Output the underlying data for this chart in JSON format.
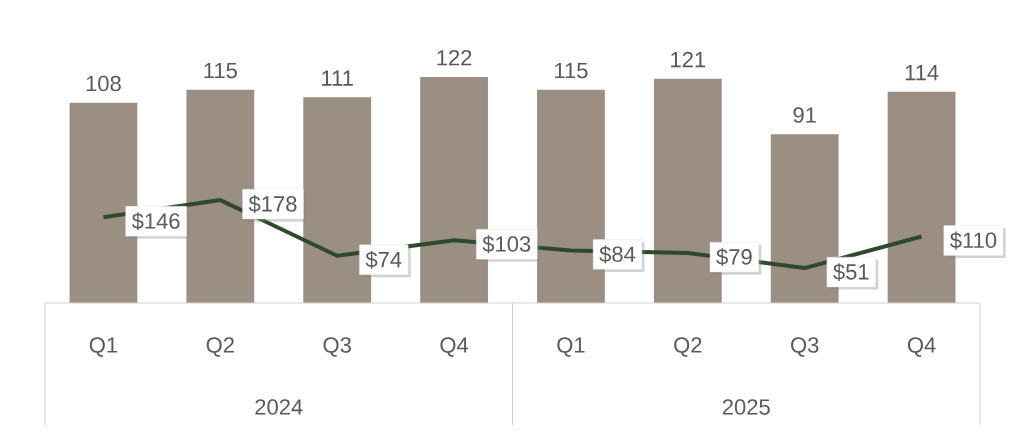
{
  "chart_data": {
    "type": "bar",
    "categories": [
      "Q1",
      "Q2",
      "Q3",
      "Q4",
      "Q1",
      "Q2",
      "Q3",
      "Q4"
    ],
    "series": [
      {
        "color": "#9b8f83",
        "values": [
          108,
          115,
          111,
          122,
          115,
          121,
          91,
          114
        ],
        "value_labels": [
          "108",
          "115",
          "111",
          "122",
          "115",
          "121",
          "91",
          "114"
        ]
      },
      {
        "type": "line",
        "axis": "y2",
        "color": "#2e4a2a",
        "values": [
          146,
          178,
          74,
          103,
          84,
          79,
          51,
          110
        ],
        "value_labels": [
          "$146",
          "$178",
          "$74",
          "$103",
          "$84",
          "$79",
          "$51",
          "$110"
        ]
      }
    ],
    "annotations": [
      "2024",
      "2025"
    ],
    "marker": "none",
    "line_style": "solid"
  }
}
